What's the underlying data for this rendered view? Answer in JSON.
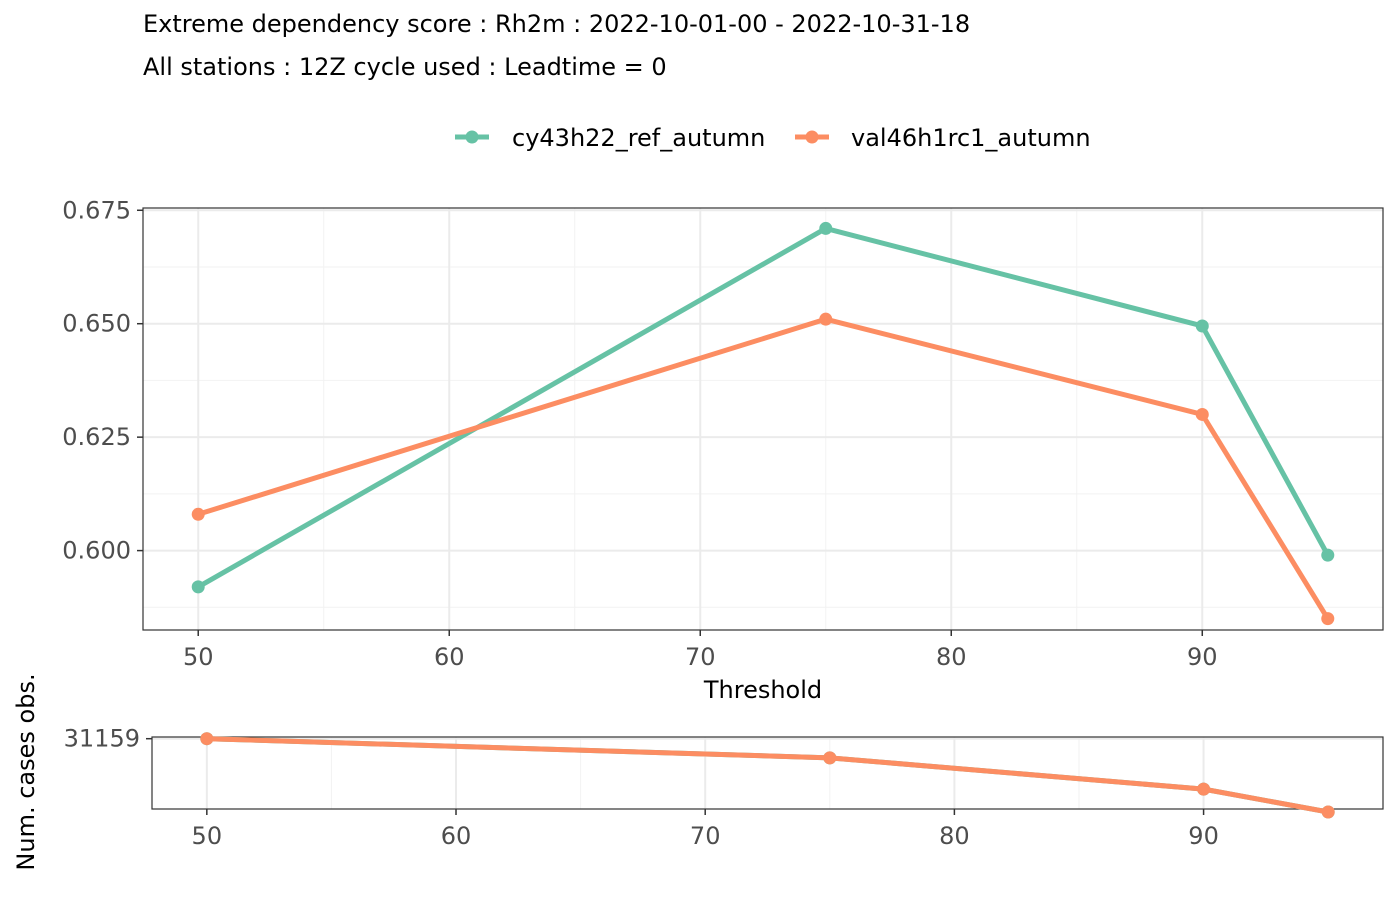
{
  "title": "Extreme dependency score : Rh2m : 2022-10-01-00 - 2022-10-31-18",
  "subtitle": "All stations : 12Z cycle used : Leadtime = 0",
  "chart_data": [
    {
      "type": "line",
      "panel": "main",
      "xlabel": "Threshold",
      "ylabel": "",
      "xlim": [
        47.8,
        97.2
      ],
      "ylim": [
        0.5825,
        0.6755
      ],
      "x_ticks": [
        50,
        60,
        70,
        80,
        90
      ],
      "y_ticks": [
        0.6,
        0.625,
        0.65,
        0.675
      ],
      "y_tick_labels": [
        "0.600",
        "0.625",
        "0.650",
        "0.675"
      ],
      "grid": true,
      "legend_position": "top",
      "series": [
        {
          "name": "cy43h22_ref_autumn",
          "color": "#66c2a5",
          "x": [
            50,
            75,
            90,
            95
          ],
          "y": [
            0.592,
            0.671,
            0.6495,
            0.599
          ]
        },
        {
          "name": "val46h1rc1_autumn",
          "color": "#fc8d62",
          "x": [
            50,
            75,
            90,
            95
          ],
          "y": [
            0.608,
            0.651,
            0.63,
            0.585
          ]
        }
      ]
    },
    {
      "type": "line",
      "panel": "cases",
      "xlabel": "",
      "ylabel": "Num. cases obs.",
      "xlim": [
        47.8,
        97.2
      ],
      "ylim": [
        17000,
        31500
      ],
      "x_ticks": [
        50,
        60,
        70,
        80,
        90
      ],
      "y_ticks": [
        31159
      ],
      "y_tick_labels": [
        "31159"
      ],
      "grid": true,
      "series": [
        {
          "name": "cy43h22_ref_autumn",
          "color": "#66c2a5",
          "x": [
            50,
            75,
            90,
            95
          ],
          "y": [
            31159,
            27300,
            21000,
            16400
          ]
        },
        {
          "name": "val46h1rc1_autumn",
          "color": "#fc8d62",
          "x": [
            50,
            75,
            90,
            95
          ],
          "y": [
            31159,
            27300,
            21000,
            16400
          ]
        }
      ]
    }
  ]
}
